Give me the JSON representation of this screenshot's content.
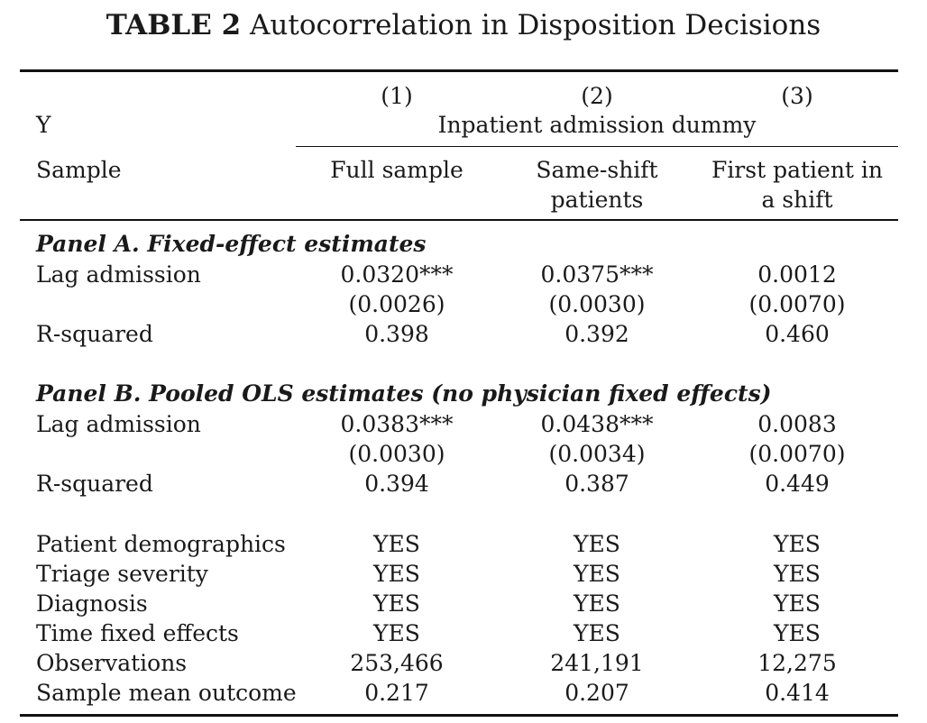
{
  "title": {
    "label": "TABLE 2",
    "text": "Autocorrelation in Disposition Decisions"
  },
  "header": {
    "col_numbers": [
      "(1)",
      "(2)",
      "(3)"
    ],
    "y_label": "Y",
    "y_value": "Inpatient admission dummy",
    "sample_label": "Sample",
    "samples": [
      {
        "line1": "Full sample",
        "line2": ""
      },
      {
        "line1": "Same-shift",
        "line2": "patients"
      },
      {
        "line1": "First patient in",
        "line2": "a shift"
      }
    ]
  },
  "panel_a": {
    "title": "Panel A. Fixed-effect estimates",
    "lag": {
      "label": "Lag admission",
      "values": [
        "0.0320***",
        "0.0375***",
        "0.0012"
      ]
    },
    "se": [
      "(0.0026)",
      "(0.0030)",
      "(0.0070)"
    ],
    "r2": {
      "label": "R-squared",
      "values": [
        "0.398",
        "0.392",
        "0.460"
      ]
    }
  },
  "panel_b": {
    "title": "Panel B. Pooled OLS estimates (no physician fixed effects)",
    "lag": {
      "label": "Lag admission",
      "values": [
        "0.0383***",
        "0.0438***",
        "0.0083"
      ]
    },
    "se": [
      "(0.0030)",
      "(0.0034)",
      "(0.0070)"
    ],
    "r2": {
      "label": "R-squared",
      "values": [
        "0.394",
        "0.387",
        "0.449"
      ]
    }
  },
  "controls": [
    {
      "label": "Patient demographics",
      "values": [
        "YES",
        "YES",
        "YES"
      ]
    },
    {
      "label": "Triage severity",
      "values": [
        "YES",
        "YES",
        "YES"
      ]
    },
    {
      "label": "Diagnosis",
      "values": [
        "YES",
        "YES",
        "YES"
      ]
    },
    {
      "label": "Time fixed effects",
      "values": [
        "YES",
        "YES",
        "YES"
      ]
    },
    {
      "label": "Observations",
      "values": [
        "253,466",
        "241,191",
        "12,275"
      ]
    },
    {
      "label": "Sample mean outcome",
      "values": [
        "0.217",
        "0.207",
        "0.414"
      ]
    }
  ]
}
